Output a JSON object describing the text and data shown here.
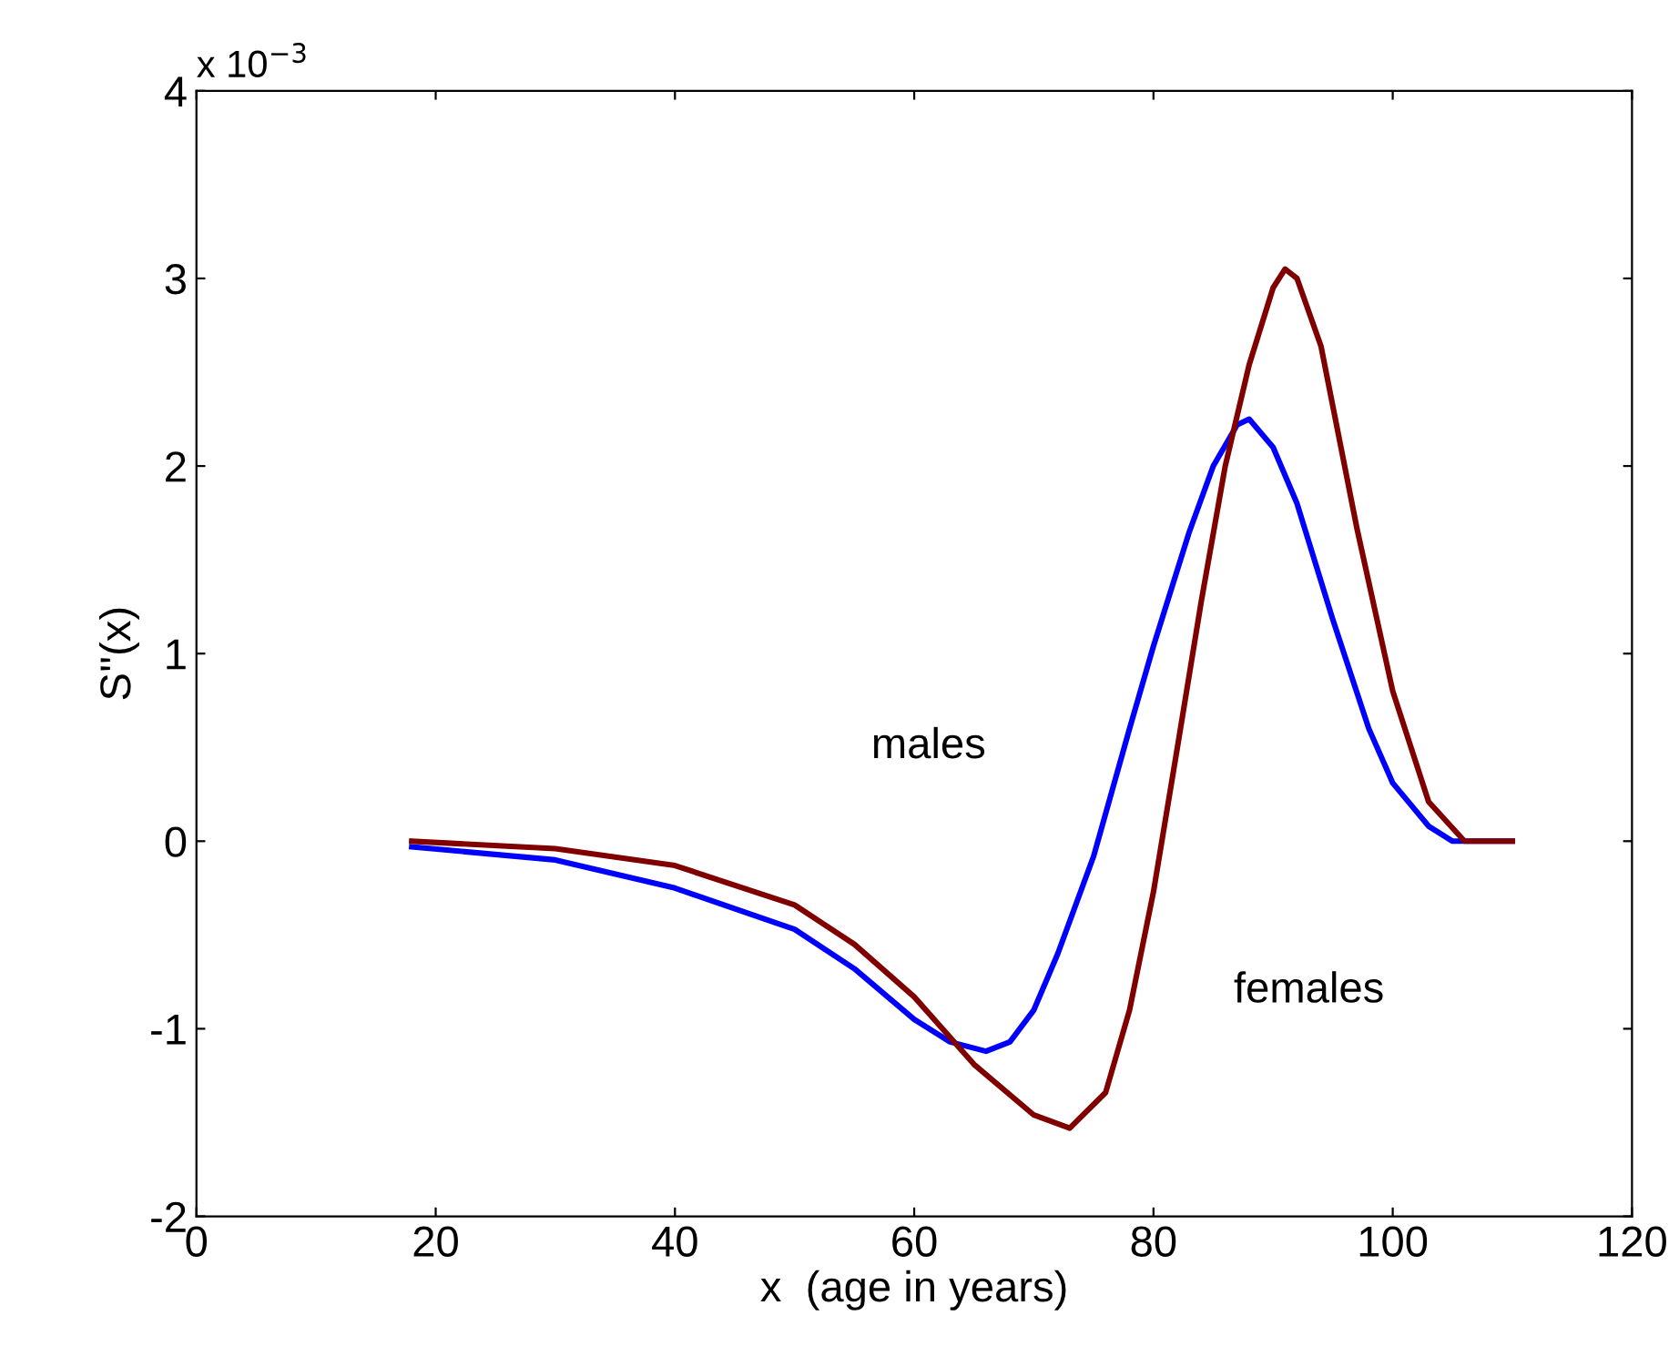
{
  "chart_data": {
    "type": "line",
    "xlabel": "x  (age in years)",
    "ylabel": "S''(x)",
    "xlim": [
      0,
      120
    ],
    "xticks": [
      0,
      20,
      40,
      60,
      80,
      100,
      120
    ],
    "ylim": [
      -2,
      4
    ],
    "yticks": [
      -2,
      -1,
      0,
      1,
      2,
      3,
      4
    ],
    "grid": false,
    "legend": false,
    "annotations": [
      "x 10$^{−3}$",
      "males",
      "females"
    ],
    "series": [
      {
        "color": "#0000ff",
        "x": [
          18,
          30,
          40,
          50,
          55,
          60,
          63,
          66,
          68,
          70,
          72,
          75,
          78,
          80,
          83,
          85,
          87,
          88,
          90,
          92,
          95,
          98,
          100,
          103,
          105,
          110
        ],
        "values": [
          -0.03,
          -0.1,
          -0.25,
          -0.47,
          -0.68,
          -0.95,
          -1.07,
          -1.12,
          -1.07,
          -0.9,
          -0.6,
          -0.08,
          0.6,
          1.04,
          1.65,
          2.0,
          2.22,
          2.25,
          2.1,
          1.8,
          1.18,
          0.6,
          0.31,
          0.08,
          0.0,
          0.0
        ]
      },
      {
        "color": "#800000",
        "x": [
          18,
          30,
          40,
          50,
          55,
          60,
          65,
          70,
          73,
          76,
          78,
          80,
          82,
          84,
          86,
          88,
          90,
          91,
          92,
          94,
          97,
          100,
          103,
          106,
          110
        ],
        "values": [
          0.0,
          -0.04,
          -0.13,
          -0.34,
          -0.55,
          -0.83,
          -1.19,
          -1.46,
          -1.53,
          -1.34,
          -0.9,
          -0.27,
          0.5,
          1.28,
          2.0,
          2.54,
          2.95,
          3.05,
          3.0,
          2.64,
          1.67,
          0.8,
          0.21,
          0.0,
          0.0
        ]
      }
    ]
  }
}
